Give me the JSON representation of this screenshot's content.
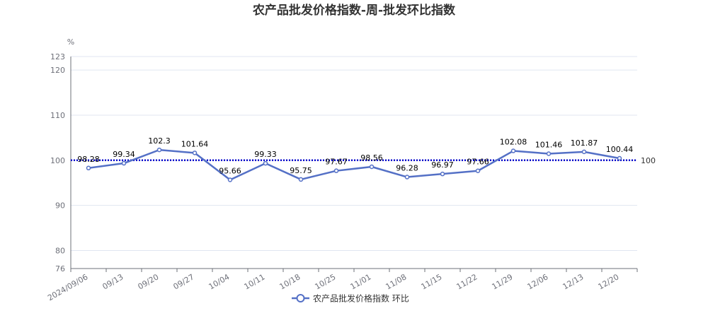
{
  "chart_data": {
    "type": "line",
    "title": "农产品批发价格指数-周-批发环比指数",
    "y_unit": "%",
    "ylim": [
      76,
      123
    ],
    "y_ticks": [
      76,
      80,
      90,
      100,
      110,
      120,
      123
    ],
    "grid": true,
    "legend_position": "bottom-center",
    "categories": [
      "2024/09/06",
      "09/13",
      "09/20",
      "09/27",
      "10/04",
      "10/11",
      "10/18",
      "10/25",
      "11/01",
      "11/08",
      "11/15",
      "11/22",
      "11/29",
      "12/06",
      "12/13",
      "12/20"
    ],
    "series": [
      {
        "name": "农产品批发价格指数 环比",
        "color": "#5470c6",
        "values": [
          98.28,
          99.34,
          102.3,
          101.64,
          95.66,
          99.33,
          95.75,
          97.67,
          98.56,
          96.28,
          96.97,
          97.66,
          102.08,
          101.46,
          101.87,
          100.44
        ]
      }
    ],
    "reference_line": {
      "value": 100,
      "label": "100",
      "color": "#0000cc",
      "style": "dotted"
    }
  }
}
